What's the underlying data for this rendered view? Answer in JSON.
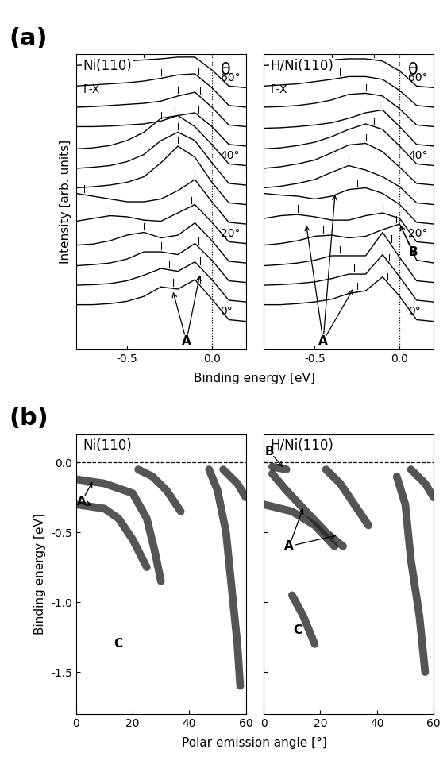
{
  "chart_data": [
    {
      "type": "waterfall",
      "panel_label": "(a)",
      "title": "Ni(110)",
      "subtitle": "Γ̄-X̄",
      "angle_header": "θ",
      "xlabel": "Binding energy [eV]",
      "ylabel": "Intensity [arb. units]",
      "xlim": [
        -0.8,
        0.2
      ],
      "xticks": [
        -0.5,
        0.0
      ],
      "ylim": [
        -0.5,
        4.8
      ],
      "yticks": [],
      "tick_labels": "x",
      "fermi_level": 0.0,
      "color": "#000000",
      "x": [
        -0.8,
        -0.7,
        -0.6,
        -0.5,
        -0.4,
        -0.3,
        -0.2,
        -0.1,
        0.0,
        0.1,
        0.2
      ],
      "angle_labels": [
        {
          "value": 0,
          "label": "0°"
        },
        {
          "value": 20,
          "label": "20°"
        },
        {
          "value": 40,
          "label": "40°"
        },
        {
          "value": 60,
          "label": "60°"
        }
      ],
      "series": [
        {
          "angle": 0,
          "values": [
            0.3,
            0.3,
            0.32,
            0.36,
            0.45,
            0.62,
            0.58,
            0.75,
            0.4,
            0.03,
            0.0
          ],
          "peaks": [
            -0.23,
            -0.07
          ]
        },
        {
          "angle": 5,
          "values": [
            0.3,
            0.31,
            0.33,
            0.38,
            0.48,
            0.6,
            0.55,
            0.72,
            0.4,
            0.03,
            0.0
          ],
          "peaks": [
            -0.25,
            -0.07
          ]
        },
        {
          "angle": 10,
          "values": [
            0.3,
            0.32,
            0.35,
            0.42,
            0.55,
            0.55,
            0.5,
            0.7,
            0.4,
            0.03,
            0.0
          ],
          "peaks": [
            -0.3,
            -0.08
          ]
        },
        {
          "angle": 15,
          "values": [
            0.32,
            0.34,
            0.4,
            0.5,
            0.55,
            0.45,
            0.5,
            0.72,
            0.4,
            0.03,
            0.0
          ],
          "peaks": [
            -0.4,
            -0.1
          ]
        },
        {
          "angle": 20,
          "values": [
            0.4,
            0.45,
            0.5,
            0.48,
            0.42,
            0.4,
            0.55,
            0.7,
            0.38,
            0.03,
            0.0
          ],
          "peaks": [
            -0.6,
            -0.12
          ]
        },
        {
          "angle": 25,
          "values": [
            0.55,
            0.5,
            0.45,
            0.4,
            0.4,
            0.45,
            0.6,
            0.8,
            0.4,
            0.03,
            0.0
          ],
          "peaks": [
            -0.75,
            -0.1
          ]
        },
        {
          "angle": 30,
          "values": [
            0.3,
            0.32,
            0.35,
            0.4,
            0.5,
            0.75,
            1.05,
            0.85,
            0.4,
            0.03,
            0.0
          ],
          "peaks": [
            -0.2
          ]
        },
        {
          "angle": 35,
          "values": [
            0.3,
            0.32,
            0.35,
            0.42,
            0.55,
            0.8,
            0.95,
            0.8,
            0.4,
            0.03,
            0.0
          ],
          "peaks": [
            -0.2
          ]
        },
        {
          "angle": 40,
          "values": [
            0.3,
            0.32,
            0.36,
            0.45,
            0.6,
            0.85,
            0.9,
            0.7,
            0.38,
            0.03,
            0.0
          ],
          "peaks": [
            -0.22
          ]
        },
        {
          "angle": 45,
          "values": [
            0.35,
            0.35,
            0.36,
            0.38,
            0.4,
            0.45,
            0.55,
            0.6,
            0.35,
            0.03,
            0.0
          ],
          "peaks": [
            -0.3,
            -0.08
          ]
        },
        {
          "angle": 50,
          "values": [
            0.35,
            0.36,
            0.38,
            0.4,
            0.42,
            0.46,
            0.55,
            0.62,
            0.35,
            0.03,
            0.0
          ],
          "peaks": [
            -0.2,
            -0.07
          ]
        },
        {
          "angle": 55,
          "values": [
            0.38,
            0.4,
            0.42,
            0.44,
            0.47,
            0.52,
            0.58,
            0.6,
            0.35,
            0.03,
            0.0
          ],
          "peaks": [
            -0.3,
            -0.08
          ]
        },
        {
          "angle": 60,
          "values": [
            0.4,
            0.42,
            0.45,
            0.48,
            0.5,
            0.52,
            0.55,
            0.55,
            0.32,
            0.03,
            0.0
          ],
          "peaks": [
            -0.4,
            -0.15
          ]
        }
      ],
      "annotations": [
        {
          "text": "A",
          "x": -0.15,
          "y": -0.35,
          "targets": [
            [
              -0.23,
              0.55
            ],
            [
              -0.07,
              0.85
            ]
          ]
        }
      ]
    },
    {
      "type": "waterfall",
      "title": "H/Ni(110)",
      "subtitle": "Γ̄-X̄",
      "angle_header": "θ",
      "xlim": [
        -0.8,
        0.2
      ],
      "xticks": [
        -0.5,
        0.0
      ],
      "ylim": [
        -0.5,
        4.8
      ],
      "yticks": [],
      "tick_labels": "x",
      "fermi_level": 0.0,
      "color": "#000000",
      "x": [
        -0.8,
        -0.7,
        -0.6,
        -0.5,
        -0.4,
        -0.3,
        -0.2,
        -0.1,
        0.0,
        0.1,
        0.2
      ],
      "angle_labels": [
        {
          "value": 0,
          "label": "0°"
        },
        {
          "value": 20,
          "label": "20°"
        },
        {
          "value": 40,
          "label": "40°"
        },
        {
          "value": 60,
          "label": "60°"
        }
      ],
      "series": [
        {
          "angle": 0,
          "values": [
            0.3,
            0.3,
            0.32,
            0.35,
            0.4,
            0.5,
            0.55,
            0.8,
            0.45,
            0.03,
            0.0
          ],
          "peaks": [
            -0.25,
            -0.07
          ]
        },
        {
          "angle": 5,
          "values": [
            0.3,
            0.31,
            0.33,
            0.36,
            0.42,
            0.5,
            0.5,
            0.85,
            0.45,
            0.03,
            0.0
          ],
          "peaks": [
            -0.27,
            -0.06
          ]
        },
        {
          "angle": 10,
          "values": [
            0.3,
            0.32,
            0.35,
            0.4,
            0.48,
            0.48,
            0.48,
            0.9,
            0.45,
            0.03,
            0.0
          ],
          "peaks": [
            -0.35,
            -0.05
          ]
        },
        {
          "angle": 15,
          "values": [
            0.32,
            0.35,
            0.4,
            0.48,
            0.5,
            0.45,
            0.48,
            0.6,
            0.7,
            0.05,
            0.0
          ],
          "peaks": [
            -0.45,
            -0.02
          ]
        },
        {
          "angle": 20,
          "values": [
            0.45,
            0.5,
            0.52,
            0.48,
            0.42,
            0.42,
            0.5,
            0.55,
            0.45,
            0.03,
            0.0
          ],
          "peaks": [
            -0.6,
            -0.1
          ]
        },
        {
          "angle": 25,
          "values": [
            0.55,
            0.52,
            0.5,
            0.45,
            0.5,
            0.62,
            0.65,
            0.55,
            0.35,
            0.03,
            0.0
          ],
          "peaks": [
            -0.25
          ]
        },
        {
          "angle": 30,
          "values": [
            0.3,
            0.33,
            0.38,
            0.45,
            0.58,
            0.7,
            0.62,
            0.5,
            0.32,
            0.03,
            0.0
          ],
          "peaks": [
            -0.3
          ]
        },
        {
          "angle": 35,
          "values": [
            0.3,
            0.33,
            0.38,
            0.45,
            0.58,
            0.72,
            0.75,
            0.6,
            0.32,
            0.03,
            0.0
          ],
          "peaks": [
            -0.2
          ]
        },
        {
          "angle": 40,
          "values": [
            0.3,
            0.32,
            0.36,
            0.42,
            0.52,
            0.65,
            0.75,
            0.65,
            0.35,
            0.03,
            0.0
          ],
          "peaks": [
            -0.15
          ]
        },
        {
          "angle": 45,
          "values": [
            0.32,
            0.33,
            0.35,
            0.38,
            0.42,
            0.5,
            0.6,
            0.65,
            0.35,
            0.03,
            0.0
          ],
          "peaks": [
            -0.12
          ]
        },
        {
          "angle": 50,
          "values": [
            0.35,
            0.36,
            0.38,
            0.42,
            0.48,
            0.58,
            0.6,
            0.55,
            0.32,
            0.03,
            0.0
          ],
          "peaks": [
            -0.2
          ]
        },
        {
          "angle": 55,
          "values": [
            0.38,
            0.4,
            0.42,
            0.46,
            0.5,
            0.55,
            0.55,
            0.5,
            0.3,
            0.03,
            0.0
          ],
          "peaks": [
            -0.35,
            -0.1
          ]
        },
        {
          "angle": 60,
          "values": [
            0.4,
            0.42,
            0.45,
            0.48,
            0.5,
            0.52,
            0.52,
            0.48,
            0.3,
            0.03,
            0.0
          ],
          "peaks": [
            -0.4,
            -0.15
          ]
        }
      ],
      "annotations": [
        {
          "text": "A",
          "x": -0.45,
          "y": -0.35,
          "targets": [
            [
              -0.55,
              1.75
            ],
            [
              -0.38,
              2.3
            ],
            [
              -0.27,
              0.6
            ]
          ]
        },
        {
          "text": "B",
          "x": 0.08,
          "y": 1.25,
          "targets": [
            [
              0.0,
              1.75
            ]
          ]
        }
      ]
    },
    {
      "type": "band_map",
      "panel_label": "(b)",
      "title": "Ni(110)",
      "xlabel": "Polar emission angle [°]",
      "ylabel": "Binding energy [eV]",
      "xlim": [
        0,
        60
      ],
      "xticks": [
        0,
        20,
        40,
        60
      ],
      "ylim": [
        -1.8,
        0.2
      ],
      "yticks": [
        {
          "value": 0.0,
          "label": "0.0"
        },
        {
          "value": -0.5,
          "label": "-0.5"
        },
        {
          "value": -1.0,
          "label": "-1.0"
        },
        {
          "value": -1.5,
          "label": "-1.5"
        }
      ],
      "fermi_level": 0.0,
      "color": "#2a2a2a",
      "series": [
        {
          "x": [
            0,
            10,
            20,
            25,
            28,
            30
          ],
          "values": [
            -0.12,
            -0.15,
            -0.22,
            -0.4,
            -0.65,
            -0.85
          ]
        },
        {
          "x": [
            0,
            10,
            15,
            20,
            25
          ],
          "values": [
            -0.3,
            -0.33,
            -0.4,
            -0.55,
            -0.75
          ]
        },
        {
          "x": [
            22,
            27,
            32,
            37
          ],
          "values": [
            -0.05,
            -0.1,
            -0.2,
            -0.35
          ]
        },
        {
          "x": [
            47,
            50,
            53,
            55,
            57,
            58
          ],
          "values": [
            -0.05,
            -0.2,
            -0.5,
            -0.9,
            -1.3,
            -1.6
          ]
        },
        {
          "x": [
            52,
            57,
            60
          ],
          "values": [
            -0.05,
            -0.15,
            -0.25
          ]
        }
      ],
      "annotations": [
        {
          "text": "A",
          "x": 2,
          "y": -0.28,
          "targets": [
            [
              6,
              -0.13
            ],
            [
              6,
              -0.31
            ]
          ]
        },
        {
          "text": "C",
          "x": 15,
          "y": -1.3,
          "targets": []
        }
      ]
    },
    {
      "type": "band_map",
      "title": "H/Ni(110)",
      "xlim": [
        0,
        60
      ],
      "xticks": [
        0,
        20,
        40,
        60
      ],
      "ylim": [
        -1.8,
        0.2
      ],
      "yticks": [
        {
          "value": 0.0,
          "label": "0.0"
        },
        {
          "value": -0.5,
          "label": "-0.5"
        },
        {
          "value": -1.0,
          "label": "-1.0"
        },
        {
          "value": -1.5,
          "label": "-1.5"
        }
      ],
      "tick_labels": "x",
      "fermi_level": 0.0,
      "color": "#2a2a2a",
      "series": [
        {
          "x": [
            3,
            8,
            15,
            22,
            28
          ],
          "values": [
            -0.08,
            -0.2,
            -0.35,
            -0.5,
            -0.6
          ]
        },
        {
          "x": [
            0,
            10,
            18,
            25
          ],
          "values": [
            -0.3,
            -0.35,
            -0.45,
            -0.6
          ]
        },
        {
          "x": [
            22,
            27,
            32,
            37
          ],
          "values": [
            -0.05,
            -0.15,
            -0.3,
            -0.45
          ]
        },
        {
          "x": [
            10,
            14,
            18
          ],
          "values": [
            -0.95,
            -1.1,
            -1.3
          ]
        },
        {
          "x": [
            47,
            50,
            52,
            55,
            57
          ],
          "values": [
            -0.1,
            -0.3,
            -0.7,
            -1.1,
            -1.5
          ]
        },
        {
          "x": [
            52,
            57,
            60
          ],
          "values": [
            -0.05,
            -0.15,
            -0.25
          ]
        },
        {
          "x": [
            3,
            8
          ],
          "values": [
            -0.03,
            -0.05
          ]
        }
      ],
      "annotations": [
        {
          "text": "B",
          "x": 2,
          "y": 0.08,
          "targets": [
            [
              7,
              -0.04
            ]
          ]
        },
        {
          "text": "A",
          "x": 9,
          "y": -0.6,
          "targets": [
            [
              14,
              -0.32
            ],
            [
              26,
              -0.52
            ]
          ]
        },
        {
          "text": "C",
          "x": 12,
          "y": -1.2,
          "targets": []
        }
      ]
    }
  ]
}
